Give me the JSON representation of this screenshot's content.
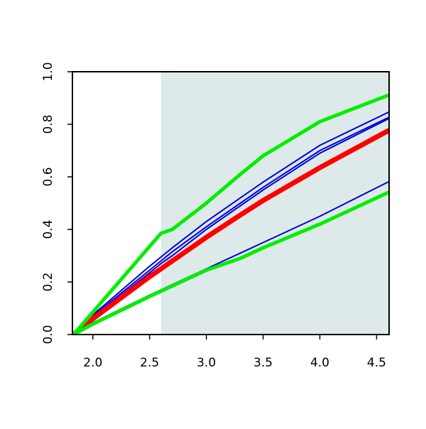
{
  "chart_data": {
    "type": "line",
    "x": [
      1.83,
      2.0,
      2.5,
      2.6,
      2.7,
      3.0,
      3.3,
      3.5,
      4.0,
      4.6
    ],
    "series": [
      {
        "color": "#0000dd",
        "width": 2,
        "values": [
          0,
          0.075,
          0.26,
          0.295,
          0.33,
          0.43,
          0.52,
          0.58,
          0.72,
          0.845
        ]
      },
      {
        "color": "#0000dd",
        "width": 2,
        "values": [
          0,
          0.07,
          0.245,
          0.28,
          0.315,
          0.41,
          0.5,
          0.56,
          0.7,
          0.825
        ]
      },
      {
        "color": "#0000dd",
        "width": 2,
        "values": [
          0,
          0.065,
          0.235,
          0.27,
          0.3,
          0.4,
          0.49,
          0.55,
          0.69,
          0.82
        ]
      },
      {
        "color": "#0000dd",
        "width": 2,
        "values": [
          0,
          0.045,
          0.15,
          0.17,
          0.19,
          0.25,
          0.31,
          0.35,
          0.45,
          0.58
        ]
      },
      {
        "color": "#ff0000",
        "width": 7,
        "values": [
          0,
          0.06,
          0.22,
          0.25,
          0.28,
          0.37,
          0.455,
          0.51,
          0.635,
          0.775
        ]
      },
      {
        "color": "#00ee00",
        "width": 5,
        "values": [
          0,
          0.085,
          0.335,
          0.385,
          0.4,
          0.5,
          0.61,
          0.68,
          0.81,
          0.91
        ]
      },
      {
        "color": "#00ee00",
        "width": 5,
        "values": [
          0,
          0.04,
          0.145,
          0.165,
          0.185,
          0.245,
          0.29,
          0.33,
          0.42,
          0.54
        ]
      }
    ],
    "shade_from": 2.6,
    "shade_color": "#deeae9",
    "xlim": [
      1.82,
      4.61
    ],
    "ylim": [
      0,
      1.0
    ],
    "xticks": [
      {
        "value": 2,
        "label": "2.0"
      },
      2.5,
      {
        "value": 3,
        "label": "3.0"
      },
      3.5,
      {
        "value": 4,
        "label": "4.0"
      },
      4.5
    ],
    "yticks": [
      {
        "value": 0,
        "label": "0.0"
      },
      0.2,
      0.4,
      0.6,
      0.8,
      {
        "value": 1,
        "label": "1.0"
      }
    ]
  }
}
